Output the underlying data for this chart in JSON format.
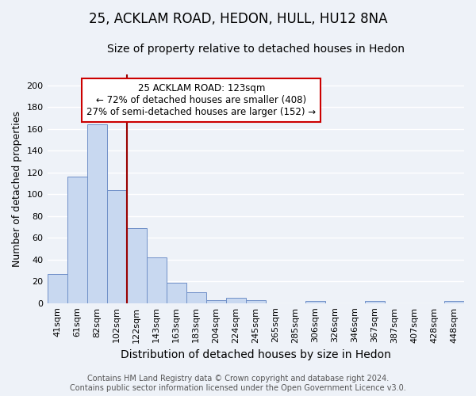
{
  "title": "25, ACKLAM ROAD, HEDON, HULL, HU12 8NA",
  "subtitle": "Size of property relative to detached houses in Hedon",
  "xlabel": "Distribution of detached houses by size in Hedon",
  "ylabel": "Number of detached properties",
  "categories": [
    "41sqm",
    "61sqm",
    "82sqm",
    "102sqm",
    "122sqm",
    "143sqm",
    "163sqm",
    "183sqm",
    "204sqm",
    "224sqm",
    "245sqm",
    "265sqm",
    "285sqm",
    "306sqm",
    "326sqm",
    "346sqm",
    "367sqm",
    "387sqm",
    "407sqm",
    "428sqm",
    "448sqm"
  ],
  "values": [
    27,
    116,
    164,
    104,
    69,
    42,
    19,
    10,
    3,
    5,
    3,
    0,
    0,
    2,
    0,
    0,
    2,
    0,
    0,
    0,
    2
  ],
  "bar_color": "#c8d8f0",
  "bar_edge_color": "#7090c8",
  "background_color": "#eef2f8",
  "plot_bg_color": "#eef2f8",
  "grid_color": "#ffffff",
  "vline_x": 3.5,
  "vline_color": "#990000",
  "annotation_text": "25 ACKLAM ROAD: 123sqm\n← 72% of detached houses are smaller (408)\n27% of semi-detached houses are larger (152) →",
  "annotation_box_color": "#ffffff",
  "annotation_box_edge": "#cc0000",
  "footer_line1": "Contains HM Land Registry data © Crown copyright and database right 2024.",
  "footer_line2": "Contains public sector information licensed under the Open Government Licence v3.0.",
  "ylim": [
    0,
    210
  ],
  "yticks": [
    0,
    20,
    40,
    60,
    80,
    100,
    120,
    140,
    160,
    180,
    200
  ],
  "title_fontsize": 12,
  "subtitle_fontsize": 10,
  "ylabel_fontsize": 9,
  "xlabel_fontsize": 10,
  "tick_fontsize": 8,
  "footer_fontsize": 7
}
